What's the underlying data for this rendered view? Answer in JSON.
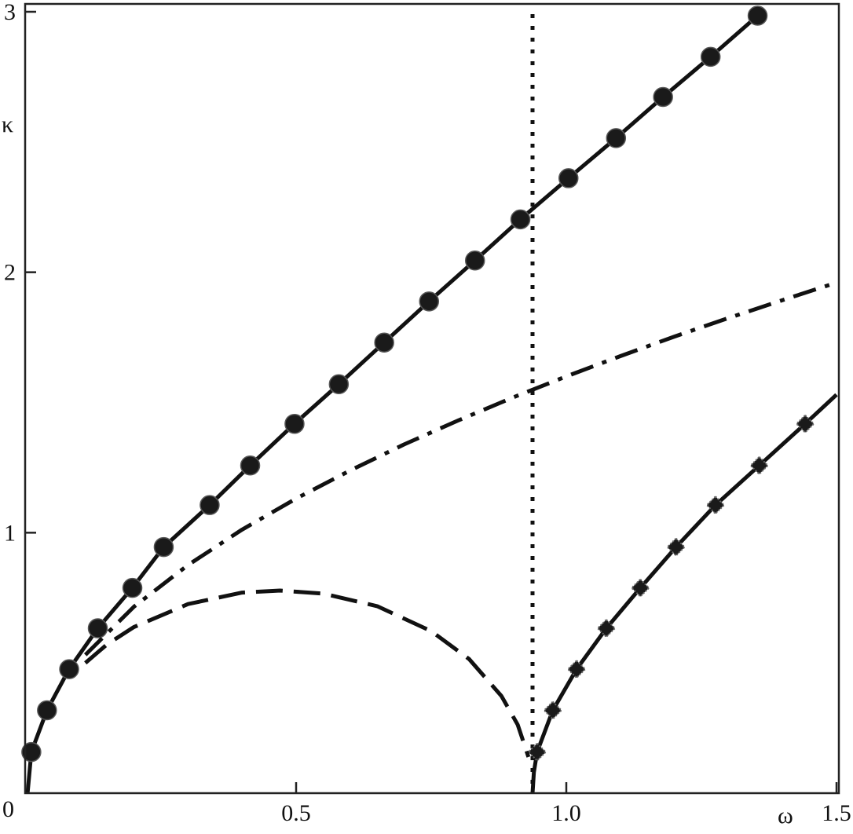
{
  "chart_data": {
    "type": "line",
    "title": "",
    "xlabel": "ω",
    "ylabel": "κ",
    "xlim": [
      0,
      1.5
    ],
    "ylim": [
      0,
      3
    ],
    "grid": false,
    "x_ticks": [
      {
        "v": 0.5,
        "label": "0.5"
      },
      {
        "v": 1.0,
        "label": "1.0"
      },
      {
        "v": 1.5,
        "label": "1.5"
      }
    ],
    "y_ticks": [
      {
        "v": 1,
        "label": "1"
      },
      {
        "v": 2,
        "label": "2"
      },
      {
        "v": 3,
        "label": "3"
      }
    ],
    "origin_label": "0",
    "vertical_line": {
      "x": 0.9375,
      "style": "dotted"
    },
    "series": [
      {
        "style": "solid",
        "marker": "circle",
        "line": [
          [
            0.003,
            0
          ],
          [
            0.01,
            0.158
          ],
          [
            0.039,
            0.318
          ],
          [
            0.08,
            0.476
          ],
          [
            0.133,
            0.633
          ],
          [
            0.197,
            0.788
          ],
          [
            0.255,
            0.945
          ],
          [
            0.34,
            1.106
          ],
          [
            0.415,
            1.258
          ],
          [
            0.497,
            1.418
          ],
          [
            0.579,
            1.57
          ],
          [
            0.663,
            1.73
          ],
          [
            0.746,
            1.888
          ],
          [
            0.831,
            2.045
          ],
          [
            0.915,
            2.203
          ],
          [
            1.004,
            2.361
          ],
          [
            1.092,
            2.515
          ],
          [
            1.179,
            2.673
          ],
          [
            1.267,
            2.827
          ],
          [
            1.354,
            2.985
          ]
        ],
        "markers": [
          [
            0.01,
            0.158
          ],
          [
            0.039,
            0.318
          ],
          [
            0.08,
            0.476
          ],
          [
            0.133,
            0.633
          ],
          [
            0.197,
            0.788
          ],
          [
            0.255,
            0.945
          ],
          [
            0.34,
            1.106
          ],
          [
            0.415,
            1.258
          ],
          [
            0.497,
            1.418
          ],
          [
            0.579,
            1.57
          ],
          [
            0.663,
            1.73
          ],
          [
            0.746,
            1.888
          ],
          [
            0.831,
            2.045
          ],
          [
            0.915,
            2.203
          ],
          [
            1.004,
            2.361
          ],
          [
            1.092,
            2.515
          ],
          [
            1.179,
            2.673
          ],
          [
            1.267,
            2.827
          ],
          [
            1.354,
            2.985
          ]
        ]
      },
      {
        "style": "solid",
        "marker": "diamond",
        "line": [
          [
            0.9375,
            0
          ],
          [
            0.94,
            0.08
          ],
          [
            0.946,
            0.158
          ],
          [
            0.975,
            0.318
          ],
          [
            1.019,
            0.476
          ],
          [
            1.074,
            0.633
          ],
          [
            1.137,
            0.788
          ],
          [
            1.203,
            0.945
          ],
          [
            1.276,
            1.106
          ],
          [
            1.357,
            1.258
          ],
          [
            1.442,
            1.418
          ],
          [
            1.5,
            1.53
          ]
        ],
        "markers": [
          [
            0.946,
            0.158
          ],
          [
            0.975,
            0.318
          ],
          [
            1.019,
            0.476
          ],
          [
            1.074,
            0.633
          ],
          [
            1.137,
            0.788
          ],
          [
            1.203,
            0.945
          ],
          [
            1.276,
            1.106
          ],
          [
            1.357,
            1.258
          ],
          [
            1.442,
            1.418
          ]
        ]
      },
      {
        "style": "dashed",
        "marker": "none",
        "line": [
          [
            0.11,
            0.5
          ],
          [
            0.15,
            0.571
          ],
          [
            0.2,
            0.638
          ],
          [
            0.3,
            0.726
          ],
          [
            0.4,
            0.77
          ],
          [
            0.47,
            0.778
          ],
          [
            0.55,
            0.766
          ],
          [
            0.65,
            0.718
          ],
          [
            0.75,
            0.622
          ],
          [
            0.82,
            0.515
          ],
          [
            0.88,
            0.373
          ],
          [
            0.91,
            0.263
          ],
          [
            0.93,
            0.139
          ]
        ],
        "markers": []
      },
      {
        "style": "dash-dot",
        "marker": "none",
        "line": [
          [
            0.11,
            0.531
          ],
          [
            0.2,
            0.716
          ],
          [
            0.3,
            0.876
          ],
          [
            0.4,
            1.012
          ],
          [
            0.5,
            1.131
          ],
          [
            0.6,
            1.239
          ],
          [
            0.7,
            1.339
          ],
          [
            0.8,
            1.431
          ],
          [
            0.9,
            1.518
          ],
          [
            1.0,
            1.6
          ],
          [
            1.1,
            1.678
          ],
          [
            1.2,
            1.753
          ],
          [
            1.3,
            1.824
          ],
          [
            1.4,
            1.893
          ],
          [
            1.5,
            1.96
          ]
        ],
        "markers": []
      }
    ]
  }
}
